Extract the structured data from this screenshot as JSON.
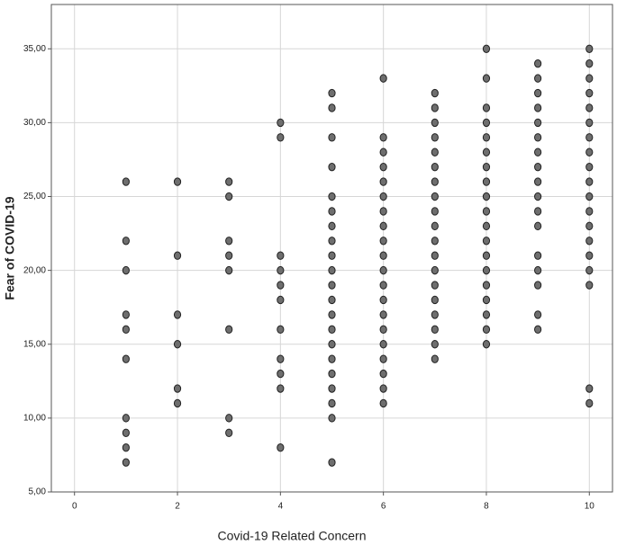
{
  "chart_data": {
    "type": "scatter",
    "x_label": "Covid-19 Related Concern",
    "y_label": "Fear of COVID-19",
    "x": [
      1,
      1,
      1,
      1,
      1,
      1,
      1,
      1,
      1,
      1,
      2,
      2,
      2,
      2,
      2,
      2,
      3,
      3,
      3,
      3,
      3,
      3,
      3,
      3,
      4,
      4,
      4,
      4,
      4,
      4,
      4,
      4,
      4,
      4,
      4,
      5,
      5,
      5,
      5,
      5,
      5,
      5,
      5,
      5,
      5,
      5,
      5,
      5,
      5,
      5,
      5,
      5,
      5,
      5,
      5,
      5,
      6,
      6,
      6,
      6,
      6,
      6,
      6,
      6,
      6,
      6,
      6,
      6,
      6,
      6,
      6,
      6,
      6,
      6,
      6,
      6,
      7,
      7,
      7,
      7,
      7,
      7,
      7,
      7,
      7,
      7,
      7,
      7,
      7,
      7,
      7,
      7,
      7,
      7,
      7,
      8,
      8,
      8,
      8,
      8,
      8,
      8,
      8,
      8,
      8,
      8,
      8,
      8,
      8,
      8,
      8,
      8,
      8,
      8,
      9,
      9,
      9,
      9,
      9,
      9,
      9,
      9,
      9,
      9,
      9,
      9,
      9,
      9,
      9,
      9,
      9,
      10,
      10,
      10,
      10,
      10,
      10,
      10,
      10,
      10,
      10,
      10,
      10,
      10,
      10,
      10,
      10,
      10,
      10,
      10
    ],
    "values": [
      26,
      22,
      20,
      17,
      16,
      14,
      10,
      9,
      8,
      7,
      26,
      21,
      17,
      15,
      12,
      11,
      26,
      25,
      22,
      21,
      20,
      16,
      10,
      9,
      30,
      29,
      21,
      20,
      19,
      18,
      16,
      14,
      13,
      12,
      8,
      32,
      31,
      29,
      27,
      25,
      24,
      23,
      22,
      21,
      20,
      19,
      18,
      17,
      16,
      15,
      14,
      13,
      12,
      11,
      10,
      7,
      33,
      29,
      28,
      27,
      26,
      25,
      24,
      23,
      22,
      21,
      20,
      19,
      18,
      17,
      16,
      15,
      14,
      13,
      12,
      11,
      32,
      31,
      30,
      29,
      28,
      27,
      26,
      25,
      24,
      23,
      22,
      21,
      20,
      19,
      18,
      17,
      16,
      15,
      14,
      35,
      33,
      31,
      30,
      29,
      28,
      27,
      26,
      25,
      24,
      23,
      22,
      21,
      20,
      19,
      18,
      17,
      16,
      15,
      34,
      33,
      32,
      31,
      30,
      29,
      28,
      27,
      26,
      25,
      24,
      23,
      21,
      20,
      19,
      17,
      16,
      35,
      34,
      33,
      32,
      31,
      30,
      29,
      28,
      27,
      26,
      25,
      24,
      23,
      22,
      21,
      20,
      19,
      12,
      11
    ],
    "color": "#6e6e6e",
    "xlim": [
      -0.45,
      10.45
    ],
    "ylim": [
      5,
      38
    ],
    "xticks": [
      0,
      2,
      4,
      6,
      8,
      10
    ],
    "yticks": [
      {
        "value": 5,
        "label": "5,00"
      },
      {
        "value": 10,
        "label": "10,00"
      },
      {
        "value": 15,
        "label": "15,00"
      },
      {
        "value": 20,
        "label": "20,00"
      },
      {
        "value": 25,
        "label": "25,00"
      },
      {
        "value": 30,
        "label": "30,00"
      },
      {
        "value": 35,
        "label": "35,00"
      }
    ],
    "grid": true
  }
}
